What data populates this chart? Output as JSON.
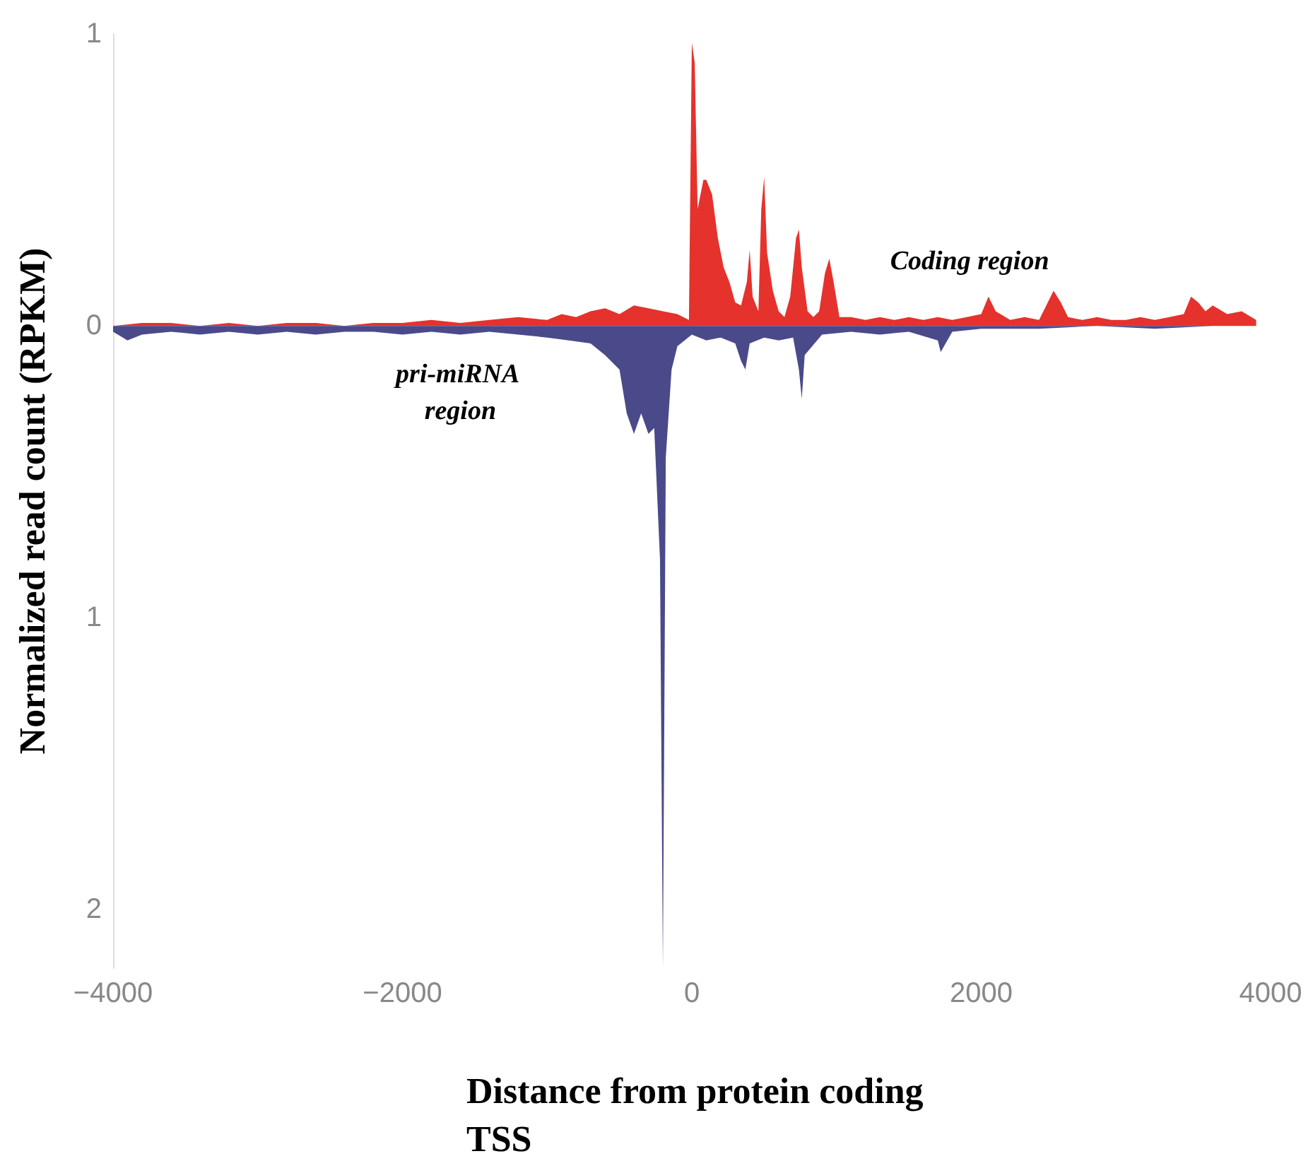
{
  "chart_data": {
    "type": "area",
    "xlabel": "Distance from protein coding TSS",
    "ylabel": "Normalized read count (RPKM)",
    "xlim": [
      -4000,
      4000
    ],
    "xticks": [
      {
        "value": -4000,
        "label": "−4000"
      },
      {
        "value": -2000,
        "label": "−2000"
      },
      0,
      2000,
      4000
    ],
    "ylim": [
      -2.2,
      1
    ],
    "yticks": [
      1,
      0,
      {
        "value": -1,
        "label": "1"
      },
      {
        "value": -2,
        "label": "2"
      }
    ],
    "grid": false,
    "marker": "none",
    "annotations": [
      "Coding region",
      "pri-miRNA region"
    ],
    "series": [
      {
        "color": "#e5322d",
        "x": [
          -4000,
          -3800,
          -3600,
          -3400,
          -3200,
          -3000,
          -2800,
          -2600,
          -2400,
          -2200,
          -2000,
          -1800,
          -1600,
          -1400,
          -1200,
          -1000,
          -900,
          -800,
          -700,
          -600,
          -500,
          -400,
          -300,
          -200,
          -100,
          -20,
          0,
          20,
          40,
          60,
          80,
          100,
          140,
          180,
          220,
          260,
          300,
          340,
          380,
          400,
          420,
          460,
          480,
          500,
          520,
          560,
          600,
          640,
          680,
          720,
          740,
          760,
          800,
          840,
          880,
          920,
          950,
          980,
          1020,
          1100,
          1200,
          1300,
          1400,
          1500,
          1600,
          1700,
          1800,
          1900,
          2000,
          2050,
          2100,
          2200,
          2300,
          2400,
          2500,
          2550,
          2600,
          2700,
          2800,
          2900,
          3000,
          3100,
          3200,
          3300,
          3400,
          3450,
          3500,
          3550,
          3600,
          3700,
          3800,
          3900
        ],
        "values": [
          0,
          0.01,
          0.01,
          0,
          0.01,
          0,
          0.01,
          0.01,
          0,
          0.01,
          0.01,
          0.02,
          0.01,
          0.02,
          0.03,
          0.02,
          0.04,
          0.03,
          0.05,
          0.06,
          0.04,
          0.07,
          0.06,
          0.05,
          0.04,
          0.02,
          0.97,
          0.9,
          0.4,
          0.45,
          0.5,
          0.5,
          0.45,
          0.3,
          0.2,
          0.15,
          0.08,
          0.07,
          0.15,
          0.26,
          0.1,
          0.05,
          0.4,
          0.51,
          0.25,
          0.12,
          0.05,
          0.03,
          0.1,
          0.3,
          0.33,
          0.2,
          0.05,
          0.03,
          0.05,
          0.18,
          0.23,
          0.15,
          0.03,
          0.03,
          0.02,
          0.03,
          0.02,
          0.03,
          0.02,
          0.03,
          0.02,
          0.03,
          0.04,
          0.1,
          0.05,
          0.02,
          0.03,
          0.02,
          0.12,
          0.08,
          0.03,
          0.02,
          0.03,
          0.02,
          0.02,
          0.03,
          0.02,
          0.03,
          0.04,
          0.1,
          0.08,
          0.05,
          0.07,
          0.04,
          0.05,
          0.02
        ]
      },
      {
        "color": "#4a4a8a",
        "x": [
          -4000,
          -3900,
          -3800,
          -3600,
          -3400,
          -3200,
          -3000,
          -2800,
          -2600,
          -2400,
          -2200,
          -2000,
          -1800,
          -1600,
          -1400,
          -1200,
          -1000,
          -850,
          -700,
          -600,
          -500,
          -450,
          -400,
          -350,
          -300,
          -260,
          -220,
          -200,
          -180,
          -140,
          -100,
          0,
          100,
          200,
          300,
          340,
          370,
          400,
          500,
          600,
          700,
          740,
          760,
          780,
          900,
          1100,
          1300,
          1500,
          1700,
          1720,
          1800,
          2000,
          2400,
          2800,
          3200,
          3600,
          3900
        ],
        "values": [
          -0.02,
          -0.05,
          -0.03,
          -0.02,
          -0.03,
          -0.02,
          -0.03,
          -0.02,
          -0.03,
          -0.02,
          -0.02,
          -0.03,
          -0.02,
          -0.03,
          -0.02,
          -0.03,
          -0.04,
          -0.05,
          -0.06,
          -0.1,
          -0.15,
          -0.3,
          -0.37,
          -0.3,
          -0.37,
          -0.35,
          -0.8,
          -2.2,
          -0.45,
          -0.15,
          -0.07,
          -0.03,
          -0.05,
          -0.04,
          -0.06,
          -0.12,
          -0.15,
          -0.06,
          -0.04,
          -0.05,
          -0.04,
          -0.15,
          -0.25,
          -0.1,
          -0.03,
          -0.02,
          -0.03,
          -0.02,
          -0.05,
          -0.09,
          -0.02,
          -0.01,
          -0.01,
          0,
          -0.01,
          0,
          0
        ]
      }
    ]
  }
}
